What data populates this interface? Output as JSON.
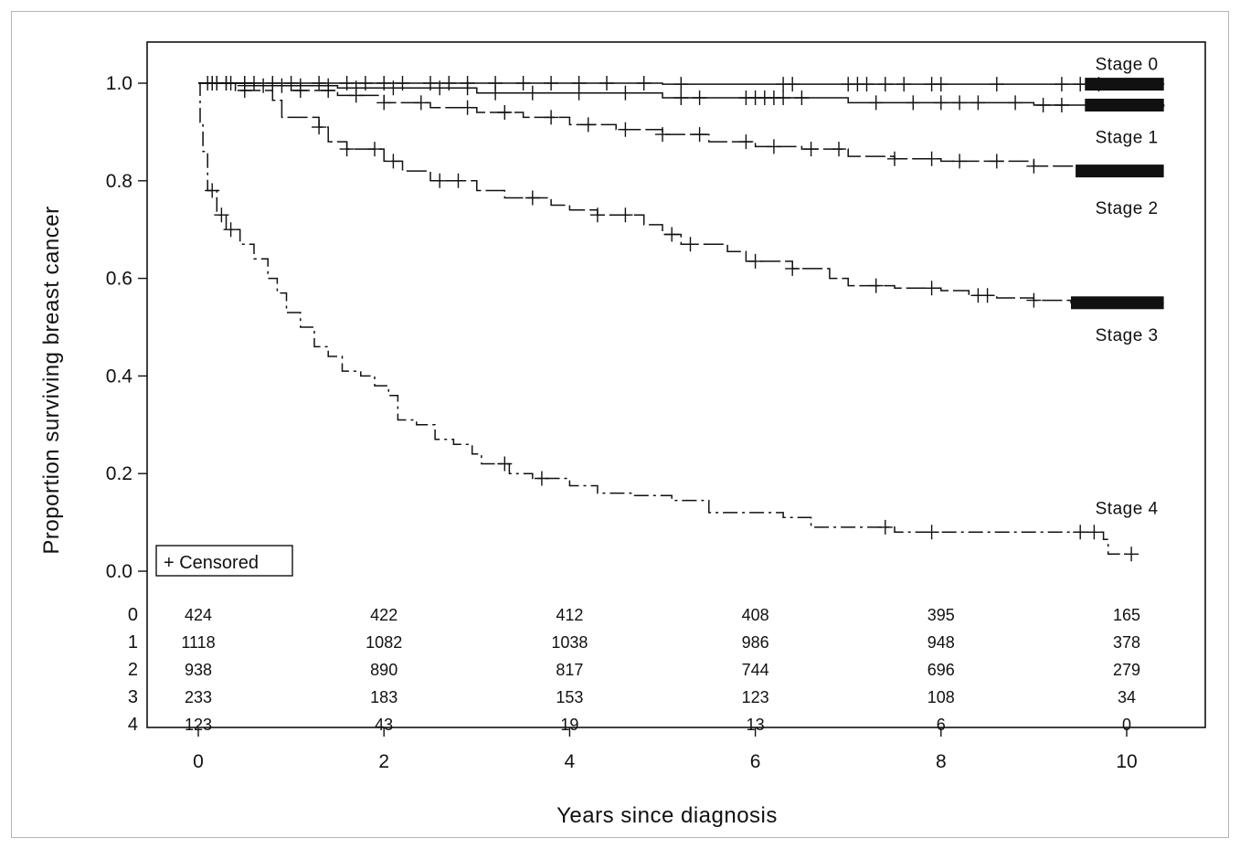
{
  "chart_data": {
    "type": "line",
    "subtype": "kaplan-meier survival curves",
    "xlabel": "Years since diagnosis",
    "ylabel": "Proportion surviving breast cancer",
    "xlim": [
      -0.5,
      10.5
    ],
    "ylim": [
      -0.02,
      1.09
    ],
    "xticks": [
      0,
      2,
      4,
      6,
      8,
      10
    ],
    "xtick_labels": [
      "0",
      "2",
      "4",
      "6",
      "8",
      "10"
    ],
    "yticks": [
      0.0,
      0.2,
      0.4,
      0.6,
      0.8,
      1.0
    ],
    "ytick_labels": [
      "0.0",
      "0.2",
      "0.4",
      "0.6",
      "0.8",
      "1.0"
    ],
    "grid": false,
    "legend": {
      "text": "+ Censored",
      "position": "bottom-left"
    },
    "series": [
      {
        "name": "Stage 0",
        "line_style": "solid",
        "steps": [
          [
            0,
            1.0
          ],
          [
            5.0,
            0.998
          ],
          [
            10.4,
            0.997
          ]
        ],
        "censored_x": [
          0.15,
          0.3,
          0.5,
          0.6,
          0.8,
          1.0,
          1.3,
          1.6,
          1.8,
          2.0,
          2.2,
          2.5,
          2.7,
          2.9,
          3.2,
          3.5,
          3.8,
          4.1,
          4.4,
          4.8,
          5.2,
          6.3,
          6.4,
          7.0,
          7.1,
          7.2,
          7.4,
          7.6,
          7.9,
          8.0,
          8.6,
          9.3,
          9.5,
          9.7
        ],
        "censored_dense": [
          9.55,
          10.4
        ]
      },
      {
        "name": "Stage 1",
        "line_style": "solid",
        "steps": [
          [
            0,
            1.0
          ],
          [
            0.6,
            0.995
          ],
          [
            1.5,
            0.99
          ],
          [
            3.0,
            0.98
          ],
          [
            5.0,
            0.97
          ],
          [
            7.0,
            0.96
          ],
          [
            9.0,
            0.955
          ],
          [
            10.4,
            0.952
          ]
        ],
        "censored_x": [
          0.1,
          0.2,
          0.35,
          0.5,
          0.7,
          0.9,
          1.1,
          1.4,
          1.7,
          2.1,
          2.6,
          2.9,
          3.2,
          3.6,
          4.1,
          4.6,
          5.2,
          5.4,
          5.9,
          6.0,
          6.1,
          6.2,
          6.3,
          6.5,
          7.3,
          7.7,
          8.0,
          8.2,
          8.4,
          8.8,
          9.1,
          9.3
        ],
        "censored_dense": [
          9.55,
          10.4
        ]
      },
      {
        "name": "Stage 2",
        "line_style": "long-dash",
        "steps": [
          [
            0,
            1.0
          ],
          [
            0.5,
            0.995
          ],
          [
            1.0,
            0.985
          ],
          [
            1.5,
            0.975
          ],
          [
            2.0,
            0.96
          ],
          [
            2.5,
            0.95
          ],
          [
            3.0,
            0.94
          ],
          [
            3.5,
            0.93
          ],
          [
            4.0,
            0.915
          ],
          [
            4.5,
            0.905
          ],
          [
            5.0,
            0.895
          ],
          [
            5.5,
            0.88
          ],
          [
            6.0,
            0.87
          ],
          [
            6.5,
            0.865
          ],
          [
            7.0,
            0.85
          ],
          [
            7.5,
            0.845
          ],
          [
            8.0,
            0.84
          ],
          [
            9.0,
            0.83
          ],
          [
            9.6,
            0.82
          ],
          [
            10.0,
            0.81
          ],
          [
            10.4,
            0.81
          ]
        ],
        "censored_x": [
          0.15,
          0.3,
          0.5,
          0.8,
          1.1,
          1.4,
          1.7,
          2.0,
          2.4,
          2.9,
          3.3,
          3.8,
          4.2,
          4.6,
          5.0,
          5.4,
          5.9,
          6.2,
          6.6,
          6.9,
          7.5,
          7.9,
          8.2,
          8.6,
          9.0
        ],
        "censored_dense": [
          9.45,
          10.4
        ]
      },
      {
        "name": "Stage 3",
        "line_style": "long-dash",
        "steps": [
          [
            0,
            1.0
          ],
          [
            0.4,
            0.985
          ],
          [
            0.8,
            0.965
          ],
          [
            0.9,
            0.93
          ],
          [
            1.3,
            0.91
          ],
          [
            1.4,
            0.88
          ],
          [
            1.6,
            0.865
          ],
          [
            2.0,
            0.84
          ],
          [
            2.2,
            0.82
          ],
          [
            2.5,
            0.8
          ],
          [
            3.0,
            0.78
          ],
          [
            3.3,
            0.765
          ],
          [
            3.8,
            0.75
          ],
          [
            4.0,
            0.74
          ],
          [
            4.3,
            0.73
          ],
          [
            4.8,
            0.71
          ],
          [
            5.0,
            0.69
          ],
          [
            5.2,
            0.67
          ],
          [
            5.7,
            0.655
          ],
          [
            5.9,
            0.635
          ],
          [
            6.4,
            0.62
          ],
          [
            6.8,
            0.6
          ],
          [
            7.0,
            0.585
          ],
          [
            7.5,
            0.58
          ],
          [
            8.0,
            0.575
          ],
          [
            8.3,
            0.565
          ],
          [
            8.6,
            0.56
          ],
          [
            9.0,
            0.555
          ],
          [
            9.4,
            0.55
          ],
          [
            10.4,
            0.55
          ]
        ],
        "censored_x": [
          0.2,
          0.5,
          1.3,
          1.6,
          1.9,
          2.1,
          2.6,
          2.8,
          3.6,
          4.3,
          4.6,
          5.1,
          5.3,
          6.0,
          6.4,
          7.3,
          7.9,
          8.4,
          8.5,
          9.0
        ],
        "censored_dense": [
          9.4,
          10.4
        ]
      },
      {
        "name": "Stage 4",
        "line_style": "dash-dot",
        "steps": [
          [
            0,
            1.0
          ],
          [
            0.02,
            0.92
          ],
          [
            0.05,
            0.86
          ],
          [
            0.1,
            0.78
          ],
          [
            0.2,
            0.73
          ],
          [
            0.3,
            0.7
          ],
          [
            0.45,
            0.67
          ],
          [
            0.6,
            0.64
          ],
          [
            0.75,
            0.6
          ],
          [
            0.85,
            0.57
          ],
          [
            0.95,
            0.53
          ],
          [
            1.1,
            0.5
          ],
          [
            1.25,
            0.46
          ],
          [
            1.4,
            0.44
          ],
          [
            1.55,
            0.41
          ],
          [
            1.75,
            0.4
          ],
          [
            1.9,
            0.38
          ],
          [
            2.05,
            0.36
          ],
          [
            2.15,
            0.31
          ],
          [
            2.35,
            0.3
          ],
          [
            2.55,
            0.27
          ],
          [
            2.75,
            0.26
          ],
          [
            2.95,
            0.24
          ],
          [
            3.05,
            0.22
          ],
          [
            3.35,
            0.2
          ],
          [
            3.6,
            0.19
          ],
          [
            4.0,
            0.175
          ],
          [
            4.3,
            0.16
          ],
          [
            4.7,
            0.155
          ],
          [
            5.1,
            0.145
          ],
          [
            5.5,
            0.12
          ],
          [
            6.3,
            0.11
          ],
          [
            6.6,
            0.09
          ],
          [
            7.5,
            0.08
          ],
          [
            9.75,
            0.065
          ],
          [
            9.8,
            0.035
          ],
          [
            10.0,
            0.035
          ]
        ],
        "censored_x": [
          0.15,
          0.25,
          0.35,
          3.3,
          3.7,
          7.4,
          7.9,
          9.5,
          9.65,
          10.05
        ]
      }
    ],
    "series_labels": [
      {
        "text": "Stage 0",
        "x": 10.4,
        "y": 1.04
      },
      {
        "text": "Stage 1",
        "x": 10.4,
        "y": 0.89
      },
      {
        "text": "Stage 2",
        "x": 10.4,
        "y": 0.745
      },
      {
        "text": "Stage 3",
        "x": 10.4,
        "y": 0.485
      },
      {
        "text": "Stage 4",
        "x": 10.4,
        "y": 0.13
      }
    ],
    "risk_table": {
      "row_labels": [
        "0",
        "1",
        "2",
        "3",
        "4"
      ],
      "columns_x": [
        0,
        2,
        4,
        6,
        8,
        10
      ],
      "rows": [
        [
          "424",
          "422",
          "412",
          "408",
          "395",
          "165"
        ],
        [
          "1118",
          "1082",
          "1038",
          "986",
          "948",
          "378"
        ],
        [
          "938",
          "890",
          "817",
          "744",
          "696",
          "279"
        ],
        [
          "233",
          "183",
          "153",
          "123",
          "108",
          "34"
        ],
        [
          "123",
          "43",
          "19",
          "13",
          "6",
          "0"
        ]
      ]
    }
  }
}
